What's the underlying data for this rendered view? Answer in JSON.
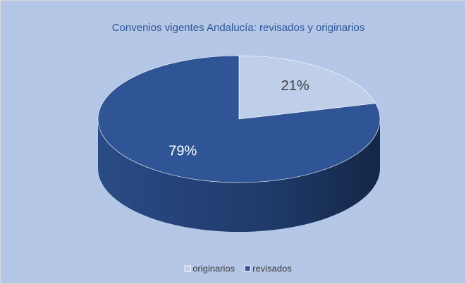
{
  "chart_data": {
    "type": "pie",
    "title": "Convenios vigentes Andalucía: revisados y originarios",
    "categories": [
      "originarios",
      "revisados"
    ],
    "values": [
      21,
      79
    ],
    "value_labels": [
      "21%",
      "79%"
    ],
    "colors": [
      "#bfcfea",
      "#2f5597"
    ],
    "legend": "bottom"
  }
}
